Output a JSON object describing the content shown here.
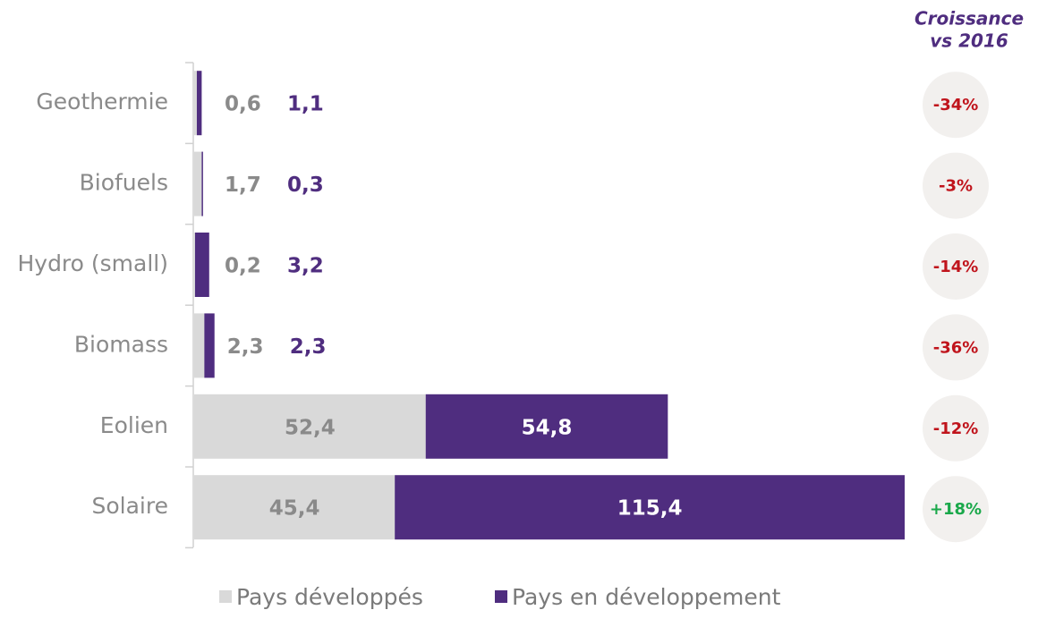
{
  "chart_data": {
    "type": "stacked-bar-horizontal",
    "categories": [
      "Geothermie",
      "Biofuels",
      "Hydro (small)",
      "Biomass",
      "Eolien",
      "Solaire"
    ],
    "series": [
      {
        "name": "Pays développés",
        "color": "#d9d9d9",
        "values": [
          0.6,
          1.7,
          0.2,
          2.3,
          52.4,
          45.4
        ],
        "value_labels": [
          "0,6",
          "1,7",
          "0,2",
          "2,3",
          "52,4",
          "45,4"
        ]
      },
      {
        "name": "Pays en développement",
        "color": "#4f2d7f",
        "values": [
          1.1,
          0.3,
          3.2,
          2.3,
          54.8,
          115.4
        ],
        "value_labels": [
          "1,1",
          "0,3",
          "3,2",
          "2,3",
          "54,8",
          "115,4"
        ]
      }
    ],
    "growth_title": [
      "Croissance",
      "vs 2016"
    ],
    "growth": {
      "values": [
        -34,
        -3,
        -14,
        -36,
        -12,
        18
      ],
      "value_labels": [
        "-34%",
        "-3%",
        "-14%",
        "-36%",
        "-12%",
        "+18%"
      ]
    },
    "legend": "bottom"
  }
}
